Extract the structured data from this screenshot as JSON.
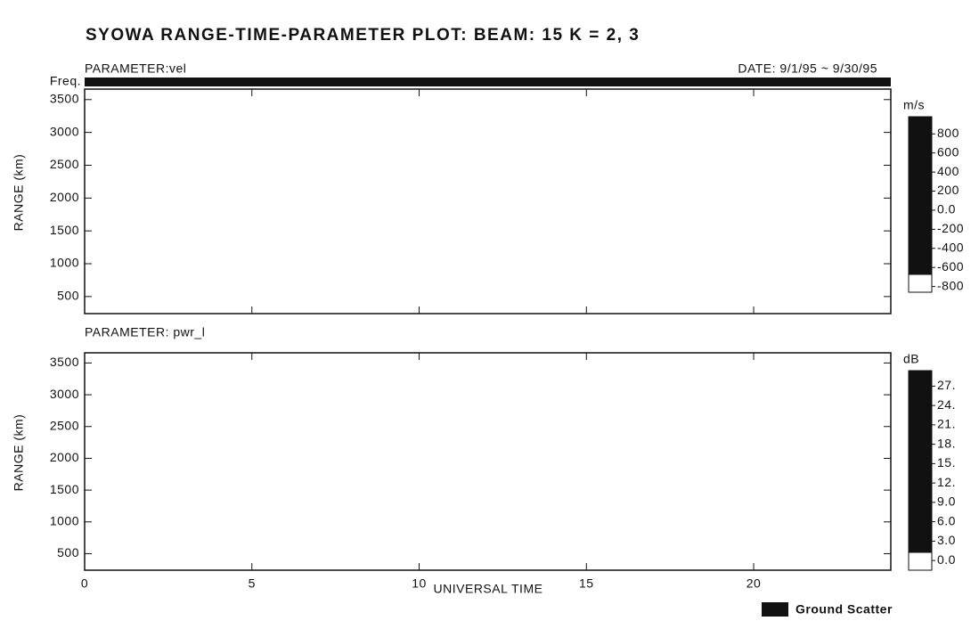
{
  "title": "SYOWA RANGE-TIME-PARAMETER PLOT: BEAM: 15  K = 2, 3",
  "xlabel": "UNIVERSAL TIME",
  "legend": "Ground Scatter",
  "chart_data": [
    {
      "type": "range-time",
      "parameter": "PARAMETER:vel",
      "date": "DATE: 9/1/95 ~ 9/30/95",
      "freq_label": "Freq.",
      "ylabel": "RANGE (km)",
      "xlim": [
        0,
        24.1
      ],
      "xticks": [
        0,
        5,
        10,
        15,
        20
      ],
      "ylim": [
        240,
        3660
      ],
      "yticks": [
        500,
        1000,
        1500,
        2000,
        2500,
        3000,
        3500
      ],
      "colorbar": {
        "unit": "m/s",
        "clim": [
          -860,
          980
        ],
        "ticks": [
          800,
          600,
          400,
          200,
          {
            "value": 0,
            "label": "0.0"
          },
          -200,
          -400,
          -600,
          -800
        ]
      }
    },
    {
      "type": "range-time",
      "parameter": "PARAMETER: pwr_l",
      "ylabel": "RANGE (km)",
      "xlim": [
        0,
        24.1
      ],
      "xticks": [
        0,
        5,
        10,
        15,
        20
      ],
      "ylim": [
        240,
        3660
      ],
      "yticks": [
        500,
        1000,
        1500,
        2000,
        2500,
        3000,
        3500
      ],
      "colorbar": {
        "unit": "dB",
        "clim": [
          -1.5,
          29.4
        ],
        "ticks": [
          {
            "value": 27,
            "label": "27."
          },
          {
            "value": 24,
            "label": "24."
          },
          {
            "value": 21,
            "label": "21."
          },
          {
            "value": 18,
            "label": "18."
          },
          {
            "value": 15,
            "label": "15."
          },
          {
            "value": 12,
            "label": "12."
          },
          {
            "value": 9,
            "label": "9.0"
          },
          {
            "value": 6,
            "label": "6.0"
          },
          {
            "value": 3,
            "label": "3.0"
          },
          {
            "value": 0,
            "label": "0.0"
          }
        ]
      }
    }
  ]
}
